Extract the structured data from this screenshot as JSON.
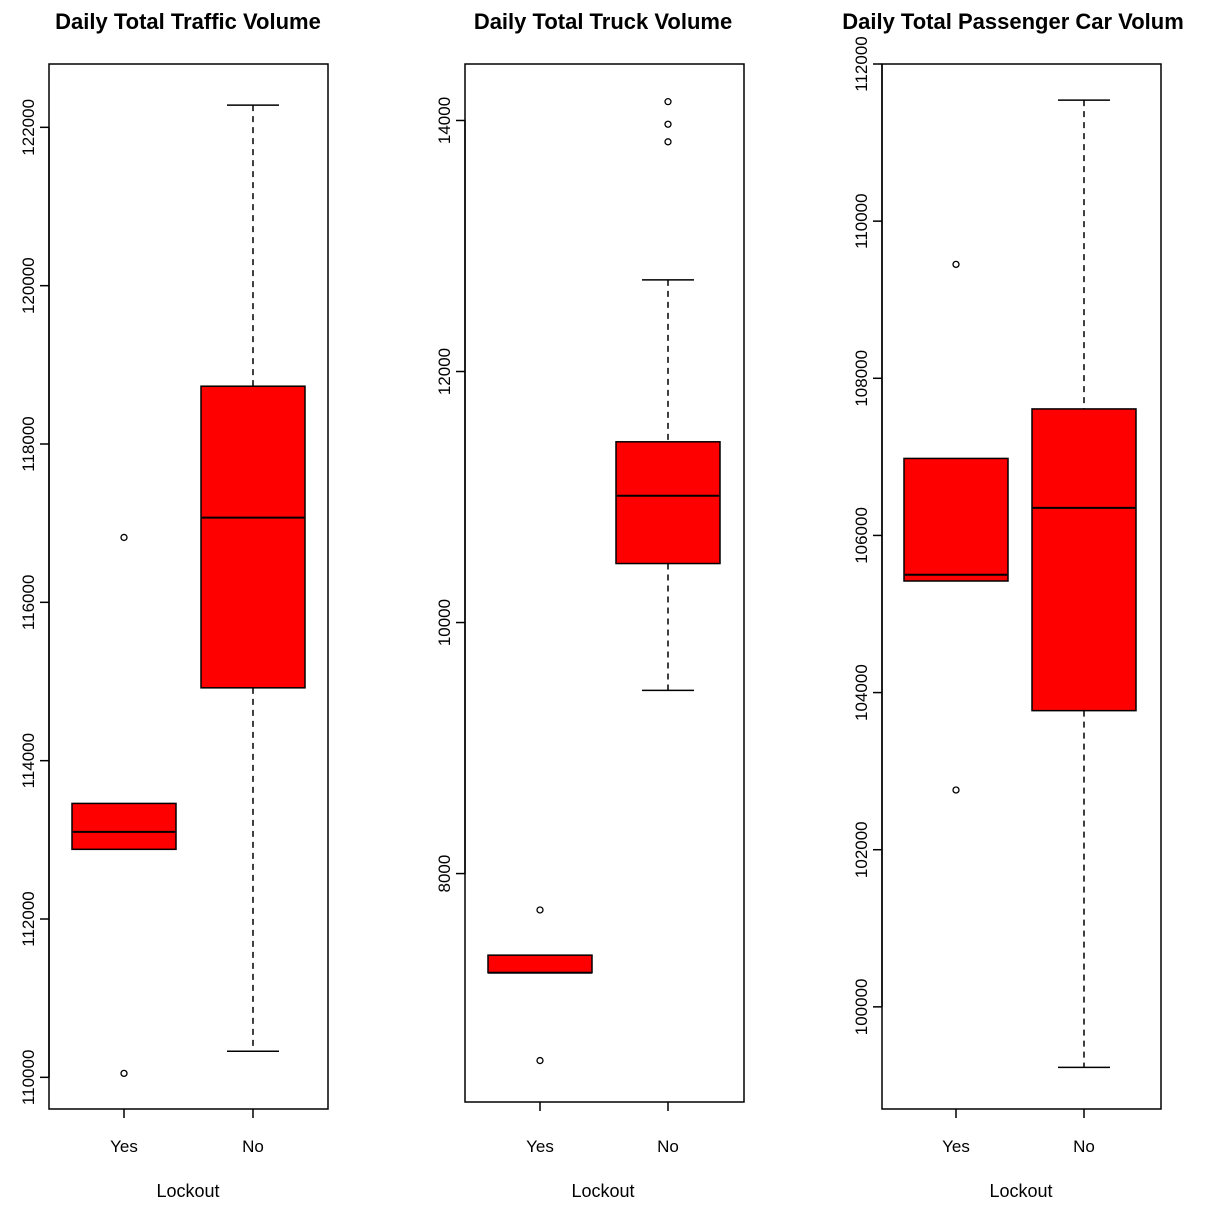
{
  "colors": {
    "box_fill": "#ff0000",
    "stroke": "#000000",
    "background": "#ffffff"
  },
  "chart_data": [
    {
      "type": "boxplot",
      "title": "Daily Total Traffic Volume",
      "xlabel": "Lockout",
      "ylabel": "",
      "categories": [
        "Yes",
        "No"
      ],
      "ylim": [
        109600,
        122800
      ],
      "yticks": [
        110000,
        112000,
        114000,
        116000,
        118000,
        120000,
        122000
      ],
      "ytick_labels": [
        "110000",
        "112000",
        "114000",
        "116000",
        "118000",
        "120000",
        "122000"
      ],
      "grid": false,
      "boxes": [
        {
          "category": "Yes",
          "whisker_low": 112880,
          "q1": 112880,
          "median": 113100,
          "q3": 113460,
          "whisker_high": 113460,
          "outliers": [
            116820,
            110050
          ]
        },
        {
          "category": "No",
          "whisker_low": 110330,
          "q1": 114920,
          "median": 117070,
          "q3": 118730,
          "whisker_high": 122280,
          "outliers": []
        }
      ]
    },
    {
      "type": "boxplot",
      "title": "Daily Total Truck Volume",
      "xlabel": "Lockout",
      "ylabel": "",
      "categories": [
        "Yes",
        "No"
      ],
      "ylim": [
        6180,
        14450
      ],
      "yticks": [
        8000,
        10000,
        12000,
        14000
      ],
      "ytick_labels": [
        "8000",
        "10000",
        "12000",
        "14000"
      ],
      "grid": false,
      "boxes": [
        {
          "category": "Yes",
          "whisker_low": 7210,
          "q1": 7210,
          "median": 7210,
          "q3": 7350,
          "whisker_high": 7350,
          "outliers": [
            7710,
            6510
          ]
        },
        {
          "category": "No",
          "whisker_low": 9460,
          "q1": 10470,
          "median": 11010,
          "q3": 11440,
          "whisker_high": 12730,
          "outliers": [
            14150,
            13970,
            13830
          ]
        }
      ]
    },
    {
      "type": "boxplot",
      "title": "Daily Total Passenger Car Volum",
      "xlabel": "Lockout",
      "ylabel": "",
      "categories": [
        "Yes",
        "No"
      ],
      "ylim": [
        98700,
        112000
      ],
      "yticks": [
        100000,
        102000,
        104000,
        106000,
        108000,
        110000,
        112000
      ],
      "ytick_labels": [
        "100000",
        "102000",
        "104000",
        "106000",
        "108000",
        "110000",
        "112000"
      ],
      "grid": false,
      "boxes": [
        {
          "category": "Yes",
          "whisker_low": 105420,
          "q1": 105420,
          "median": 105500,
          "q3": 106980,
          "whisker_high": 106980,
          "outliers": [
            109450,
            102760
          ]
        },
        {
          "category": "No",
          "whisker_low": 99230,
          "q1": 103770,
          "median": 106350,
          "q3": 107610,
          "whisker_high": 111540,
          "outliers": []
        }
      ]
    }
  ]
}
